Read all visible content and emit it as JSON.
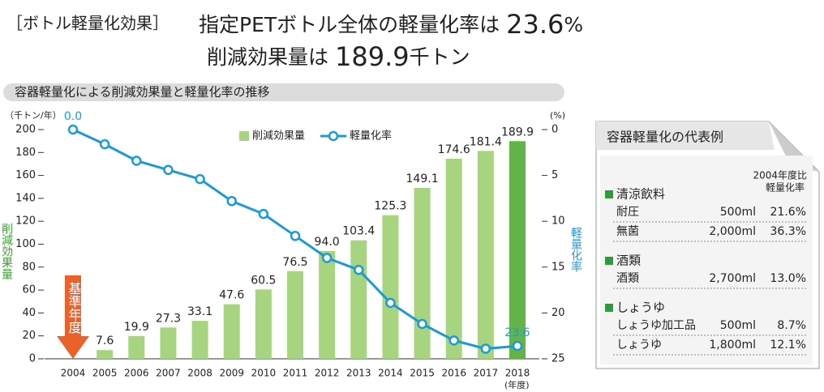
{
  "header": {
    "tag": "［ボトル軽量化効果］",
    "line1_text": "指定PETボトル全体の軽量化率は",
    "line1_number": "23.6",
    "line1_unit": "%",
    "line2_text": "削減効果量は",
    "line2_number": "189.9",
    "line2_unit": "千トン"
  },
  "chart_data": {
    "type": "bar_line",
    "title": "容器軽量化による削減効果量と軽量化率の推移",
    "y_unit": "（千トン/年）",
    "y2_unit": "(%)",
    "x_unit": "(年度)",
    "ylabel": "削減効果量",
    "y2label": "軽量化率",
    "annotation": "基準年度",
    "categories": [
      "2004",
      "2005",
      "2006",
      "2007",
      "2008",
      "2009",
      "2010",
      "2011",
      "2012",
      "2013",
      "2014",
      "2015",
      "2016",
      "2017",
      "2018"
    ],
    "series": [
      {
        "name": "削減効果量",
        "kind": "bar",
        "color": "#a6d47f",
        "colors": [
          "#a6d47f",
          "#a6d47f",
          "#a6d47f",
          "#a6d47f",
          "#a6d47f",
          "#a6d47f",
          "#a6d47f",
          "#a6d47f",
          "#a6d47f",
          "#a6d47f",
          "#a6d47f",
          "#a6d47f",
          "#a6d47f",
          "#a6d47f",
          "#62b447"
        ],
        "values": [
          0,
          7.6,
          19.9,
          27.3,
          33.1,
          47.6,
          60.5,
          76.5,
          94.0,
          103.4,
          125.3,
          149.1,
          174.6,
          181.4,
          189.9
        ],
        "value_labels": [
          null,
          "7.6",
          "19.9",
          "27.3",
          "33.1",
          "47.6",
          "60.5",
          "76.5",
          "94.0",
          "103.4",
          "125.3",
          "149.1",
          "174.6",
          "181.4",
          "189.9"
        ]
      },
      {
        "name": "軽量化率",
        "kind": "line",
        "axis": "y2",
        "color": "#1c9ad6",
        "values": [
          0.0,
          1.6,
          3.4,
          4.4,
          5.4,
          7.8,
          9.2,
          11.6,
          14.0,
          15.3,
          18.9,
          21.2,
          23.0,
          23.9,
          23.6
        ],
        "value_labels": [
          "0.0",
          null,
          null,
          null,
          null,
          null,
          null,
          null,
          null,
          null,
          null,
          null,
          null,
          null,
          "23.6"
        ]
      }
    ],
    "ylim": [
      0,
      200
    ],
    "yticks": [
      0,
      20,
      40,
      60,
      80,
      100,
      120,
      140,
      160,
      180,
      200
    ],
    "y2lim": [
      0,
      25
    ],
    "y2ticks": [
      0,
      5,
      10,
      15,
      20,
      25
    ],
    "y2_inverted": true
  },
  "table": {
    "title": "容器軽量化の代表例",
    "column_header": [
      "2004年度比",
      "軽量化率"
    ],
    "groups": [
      {
        "name": "清涼飲料",
        "rows": [
          [
            "耐圧",
            "500ml",
            "21.6%"
          ],
          [
            "無菌",
            "2,000ml",
            "36.3%"
          ]
        ]
      },
      {
        "name": "酒類",
        "rows": [
          [
            "酒類",
            "2,700ml",
            "13.0%"
          ]
        ]
      },
      {
        "name": "しょうゆ",
        "rows": [
          [
            "しょうゆ加工品",
            "500ml",
            "8.7%"
          ],
          [
            "しょうゆ",
            "1,800ml",
            "12.1%"
          ]
        ]
      }
    ]
  }
}
